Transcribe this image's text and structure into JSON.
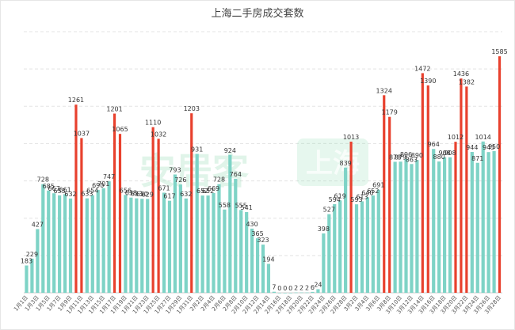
{
  "chart_data": {
    "type": "bar",
    "title": "上海二手房成交套数",
    "xlabel": "",
    "ylabel": "",
    "ylim": [
      0,
      1750
    ],
    "grid": "horizontal dashed",
    "colors": {
      "weekday": "#7ed3c6",
      "weekend_peak": "#e8412e"
    },
    "watermark": "安居客 上海",
    "categories": [
      "1月1日",
      "1月2日",
      "1月3日",
      "1月4日",
      "1月5日",
      "1月6日",
      "1月7日",
      "1月8日",
      "1月9日",
      "1月10日",
      "1月11日",
      "1月12日",
      "1月13日",
      "1月14日",
      "1月15日",
      "1月16日",
      "1月17日",
      "1月18日",
      "1月19日",
      "1月20日",
      "1月21日",
      "1月22日",
      "1月23日",
      "1月24日",
      "1月25日",
      "1月26日",
      "1月27日",
      "1月28日",
      "1月29日",
      "1月30日",
      "1月31日",
      "2月1日",
      "2月2日",
      "2月3日",
      "2月4日",
      "2月5日",
      "2月6日",
      "2月7日",
      "2月8日",
      "2月9日",
      "2月10日",
      "2月11日",
      "2月12日",
      "2月13日",
      "2月14日",
      "2月15日",
      "2月16日",
      "2月17日",
      "2月18日",
      "2月19日",
      "2月20日",
      "2月21日",
      "2月22日",
      "2月23日",
      "2月24日",
      "2月25日",
      "2月26日",
      "2月27日",
      "2月28日",
      "3月1日",
      "3月2日",
      "3月3日",
      "3月4日",
      "3月5日",
      "3月6日",
      "3月7日",
      "3月8日",
      "3月9日",
      "3月10日",
      "3月11日",
      "3月12日",
      "3月13日",
      "3月14日",
      "3月15日",
      "3月16日",
      "3月17日",
      "3月18日",
      "3月19日",
      "3月20日",
      "3月21日",
      "3月22日",
      "3月23日",
      "3月24日",
      "3月25日",
      "3月26日",
      "3月27日",
      "3月28日"
    ],
    "values": [
      183,
      229,
      427,
      728,
      685,
      667,
      653,
      661,
      632,
      1261,
      1037,
      633,
      654,
      690,
      701,
      747,
      1201,
      1065,
      656,
      638,
      633,
      630,
      629,
      1110,
      1032,
      671,
      617,
      793,
      726,
      632,
      1203,
      931,
      652,
      652,
      669,
      728,
      558,
      924,
      764,
      555,
      541,
      430,
      365,
      323,
      194,
      7,
      0,
      0,
      0,
      2,
      2,
      2,
      6,
      24,
      398,
      527,
      594,
      619,
      839,
      1013,
      593,
      613,
      640,
      652,
      691,
      1324,
      1179,
      878,
      879,
      896,
      863,
      890,
      1472,
      1390,
      964,
      880,
      908,
      908,
      1012,
      1436,
      1382,
      944,
      871,
      1014,
      943,
      950,
      1585
    ],
    "highlight": [
      false,
      false,
      false,
      false,
      false,
      false,
      false,
      false,
      false,
      true,
      true,
      false,
      false,
      false,
      false,
      false,
      true,
      true,
      false,
      false,
      false,
      false,
      false,
      true,
      true,
      false,
      false,
      false,
      false,
      false,
      true,
      false,
      false,
      false,
      false,
      false,
      false,
      false,
      false,
      false,
      false,
      false,
      false,
      false,
      false,
      false,
      false,
      false,
      false,
      false,
      false,
      false,
      false,
      false,
      false,
      false,
      false,
      false,
      false,
      true,
      false,
      false,
      false,
      false,
      false,
      true,
      true,
      false,
      false,
      false,
      false,
      false,
      true,
      true,
      false,
      false,
      false,
      false,
      true,
      true,
      true,
      false,
      false,
      false,
      false,
      false,
      true
    ]
  }
}
